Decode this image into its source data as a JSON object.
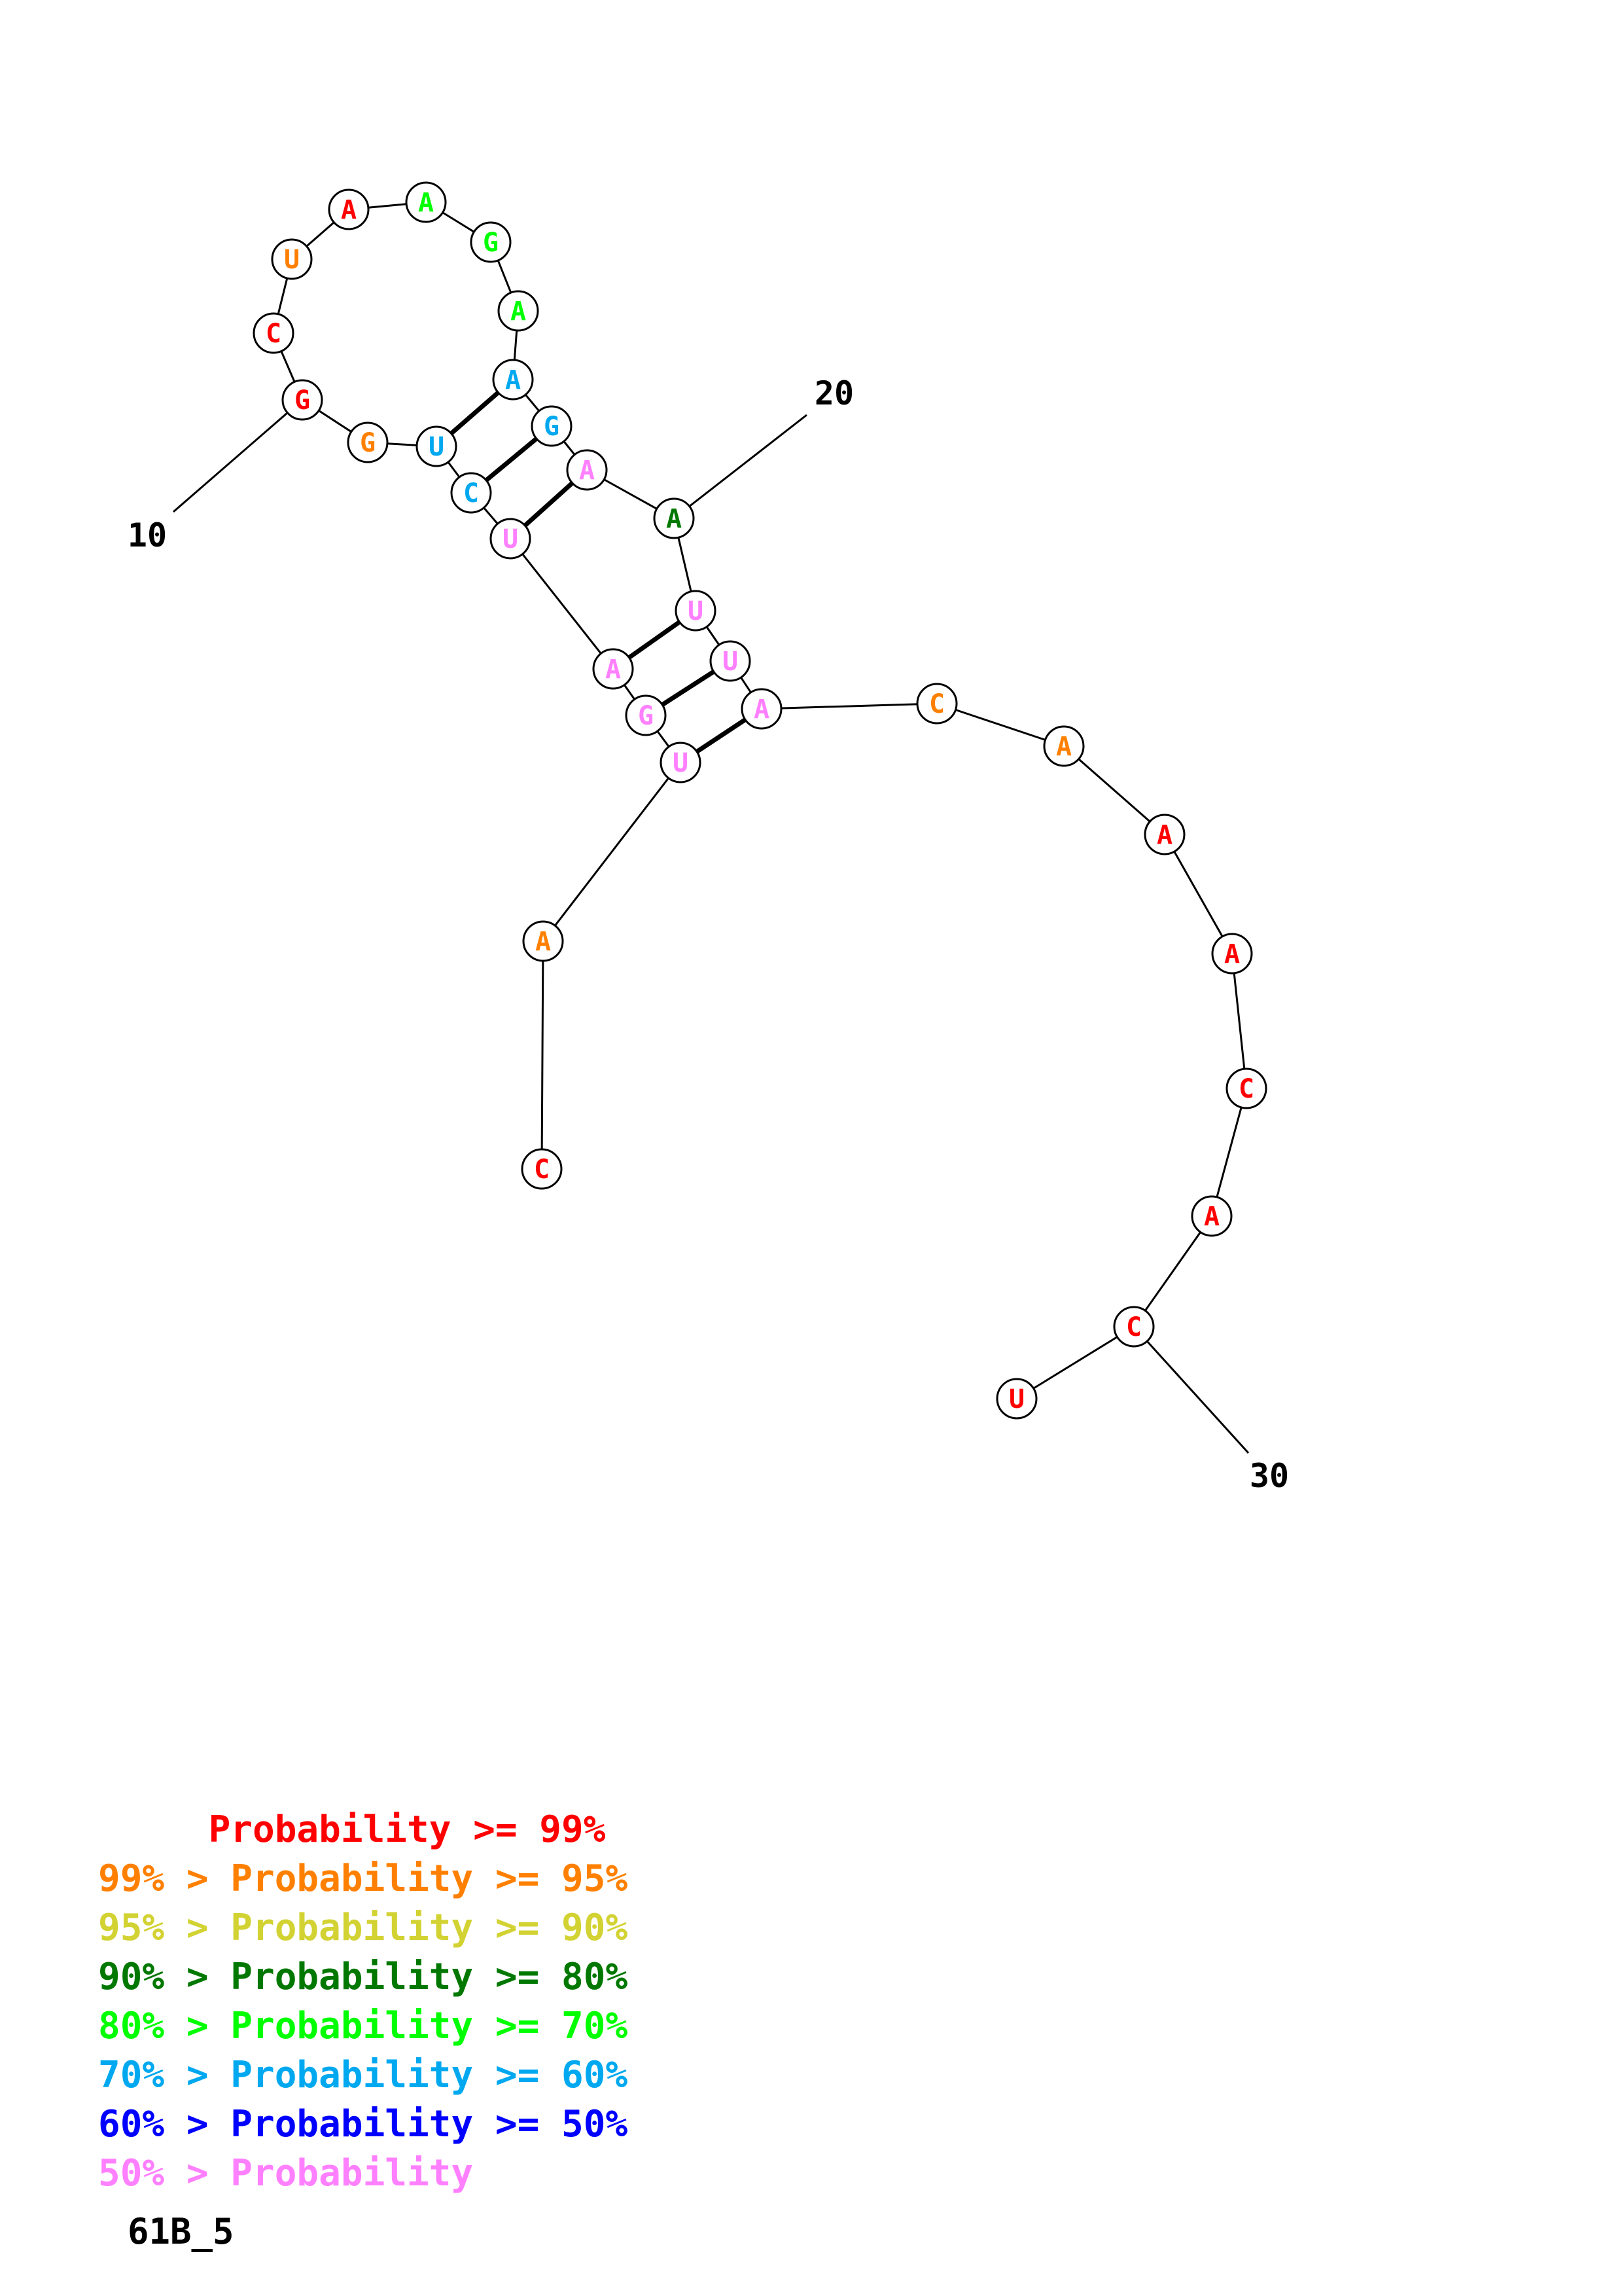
{
  "palette": {
    "p99": "#ff0000",
    "p95": "#ff8000",
    "p90": "#d2d233",
    "p80": "#007800",
    "p70": "#00ff00",
    "p60": "#00a8f0",
    "p50": "#0000ff",
    "plow": "#ff80ff"
  },
  "structure": {
    "nucleotides": [
      {
        "index": 1,
        "base": "C",
        "prob": "p99"
      },
      {
        "index": 2,
        "base": "A",
        "prob": "p95"
      },
      {
        "index": 3,
        "base": "U",
        "prob": "plow"
      },
      {
        "index": 4,
        "base": "G",
        "prob": "plow"
      },
      {
        "index": 5,
        "base": "A",
        "prob": "plow"
      },
      {
        "index": 6,
        "base": "U",
        "prob": "plow"
      },
      {
        "index": 7,
        "base": "C",
        "prob": "p60"
      },
      {
        "index": 8,
        "base": "U",
        "prob": "p60"
      },
      {
        "index": 9,
        "base": "G",
        "prob": "p95"
      },
      {
        "index": 10,
        "base": "G",
        "prob": "p99"
      },
      {
        "index": 11,
        "base": "C",
        "prob": "p99"
      },
      {
        "index": 12,
        "base": "U",
        "prob": "p95"
      },
      {
        "index": 13,
        "base": "A",
        "prob": "p99"
      },
      {
        "index": 14,
        "base": "A",
        "prob": "p70"
      },
      {
        "index": 15,
        "base": "G",
        "prob": "p70"
      },
      {
        "index": 16,
        "base": "A",
        "prob": "p70"
      },
      {
        "index": 17,
        "base": "A",
        "prob": "p60"
      },
      {
        "index": 18,
        "base": "G",
        "prob": "p60"
      },
      {
        "index": 19,
        "base": "A",
        "prob": "plow"
      },
      {
        "index": 20,
        "base": "A",
        "prob": "p80"
      },
      {
        "index": 21,
        "base": "U",
        "prob": "plow"
      },
      {
        "index": 22,
        "base": "U",
        "prob": "plow"
      },
      {
        "index": 23,
        "base": "A",
        "prob": "plow"
      },
      {
        "index": 24,
        "base": "C",
        "prob": "p95"
      },
      {
        "index": 25,
        "base": "A",
        "prob": "p95"
      },
      {
        "index": 26,
        "base": "A",
        "prob": "p99"
      },
      {
        "index": 27,
        "base": "A",
        "prob": "p99"
      },
      {
        "index": 28,
        "base": "C",
        "prob": "p99"
      },
      {
        "index": 29,
        "base": "A",
        "prob": "p99"
      },
      {
        "index": 30,
        "base": "C",
        "prob": "p99"
      },
      {
        "index": 31,
        "base": "U",
        "prob": "p99"
      }
    ],
    "pairs": [
      [
        3,
        23
      ],
      [
        4,
        22
      ],
      [
        5,
        21
      ],
      [
        6,
        19
      ],
      [
        7,
        18
      ],
      [
        8,
        17
      ]
    ],
    "numbered_positions": [
      {
        "index": 10,
        "label": "10"
      },
      {
        "index": 20,
        "label": "20"
      },
      {
        "index": 30,
        "label": "30"
      }
    ]
  },
  "legend": {
    "lines": [
      {
        "text": "     Probability >= 99%",
        "prob": "p99"
      },
      {
        "text": "99% > Probability >= 95%",
        "prob": "p95"
      },
      {
        "text": "95% > Probability >= 90%",
        "prob": "p90"
      },
      {
        "text": "90% > Probability >= 80%",
        "prob": "p80"
      },
      {
        "text": "80% > Probability >= 70%",
        "prob": "p70"
      },
      {
        "text": "70% > Probability >= 60%",
        "prob": "p60"
      },
      {
        "text": "60% > Probability >= 50%",
        "prob": "p50"
      },
      {
        "text": "50% > Probability",
        "prob": "plow"
      }
    ]
  },
  "sequence_name": "61B_5"
}
